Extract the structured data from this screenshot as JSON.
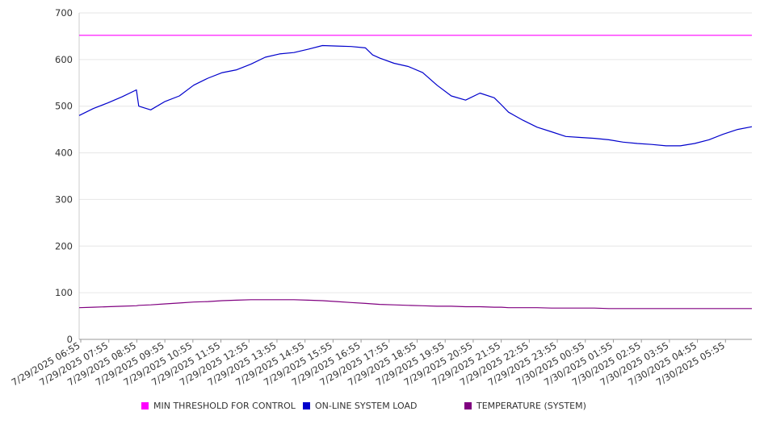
{
  "chart_data": {
    "type": "line",
    "title": "",
    "xlabel": "",
    "ylabel": "",
    "ylim": [
      0,
      700
    ],
    "yticks": [
      0,
      100,
      200,
      300,
      400,
      500,
      600,
      700
    ],
    "grid": true,
    "legend_position": "bottom",
    "x_tick_labels": [
      "7/29/2025 06:55",
      "7/29/2025 07:55",
      "7/29/2025 08:55",
      "7/29/2025 09:55",
      "7/29/2025 10:55",
      "7/29/2025 11:55",
      "7/29/2025 12:55",
      "7/29/2025 13:55",
      "7/29/2025 14:55",
      "7/29/2025 15:55",
      "7/29/2025 16:55",
      "7/29/2025 17:55",
      "7/29/2025 18:55",
      "7/29/2025 19:55",
      "7/29/2025 20:55",
      "7/29/2025 21:55",
      "7/29/2025 22:55",
      "7/29/2025 23:55",
      "7/30/2025 00:55",
      "7/30/2025 01:55",
      "7/30/2025 02:55",
      "7/30/2025 03:55",
      "7/30/2025 04:55",
      "7/30/2025 05:55"
    ],
    "x": [
      "06:55",
      "07:25",
      "07:55",
      "08:25",
      "08:55",
      "09:00",
      "09:25",
      "09:55",
      "10:25",
      "10:55",
      "11:25",
      "11:55",
      "12:25",
      "12:55",
      "13:25",
      "13:55",
      "14:25",
      "14:55",
      "15:25",
      "15:55",
      "16:25",
      "16:55",
      "17:10",
      "17:25",
      "17:55",
      "18:25",
      "18:55",
      "19:25",
      "19:55",
      "20:25",
      "20:55",
      "21:25",
      "21:40",
      "21:55",
      "22:25",
      "22:55",
      "23:25",
      "23:55",
      "00:25",
      "00:55",
      "01:25",
      "01:55",
      "02:25",
      "02:55",
      "03:25",
      "03:55",
      "04:25",
      "04:55",
      "05:25",
      "05:55",
      "06:25"
    ],
    "series": [
      {
        "name": "MIN THRESHOLD FOR CONTROL",
        "color": "#ff00ff",
        "values": [
          652,
          652,
          652,
          652,
          652,
          652,
          652,
          652,
          652,
          652,
          652,
          652,
          652,
          652,
          652,
          652,
          652,
          652,
          652,
          652,
          652,
          652,
          652,
          652,
          652,
          652,
          652,
          652,
          652,
          652,
          652,
          652,
          652,
          652,
          652,
          652,
          652,
          652,
          652,
          652,
          652,
          652,
          652,
          652,
          652,
          652,
          652,
          652,
          652,
          652,
          652
        ]
      },
      {
        "name": "ON-LINE SYSTEM LOAD",
        "color": "#0000cc",
        "values": [
          480,
          495,
          507,
          520,
          535,
          500,
          492,
          510,
          522,
          545,
          560,
          572,
          578,
          590,
          605,
          612,
          615,
          622,
          630,
          629,
          628,
          625,
          610,
          603,
          592,
          585,
          572,
          545,
          522,
          513,
          528,
          518,
          503,
          487,
          470,
          455,
          445,
          435,
          433,
          431,
          428,
          423,
          420,
          418,
          415,
          415,
          420,
          428,
          440,
          450,
          456
        ]
      },
      {
        "name": "TEMPERATURE (SYSTEM)",
        "color": "#800080",
        "values": [
          68,
          69,
          70,
          71,
          72,
          73,
          74,
          76,
          78,
          80,
          81,
          83,
          84,
          85,
          85,
          85,
          85,
          84,
          83,
          81,
          79,
          77,
          76,
          75,
          74,
          73,
          72,
          71,
          71,
          70,
          70,
          69,
          69,
          68,
          68,
          68,
          67,
          67,
          67,
          67,
          66,
          66,
          66,
          66,
          66,
          66,
          66,
          66,
          66,
          66,
          66
        ]
      }
    ]
  },
  "legend": {
    "items": [
      {
        "label": "MIN THRESHOLD FOR CONTROL",
        "color": "#ff00ff"
      },
      {
        "label": "ON-LINE SYSTEM LOAD",
        "color": "#0000cc"
      },
      {
        "label": "TEMPERATURE (SYSTEM)",
        "color": "#800080"
      }
    ]
  }
}
